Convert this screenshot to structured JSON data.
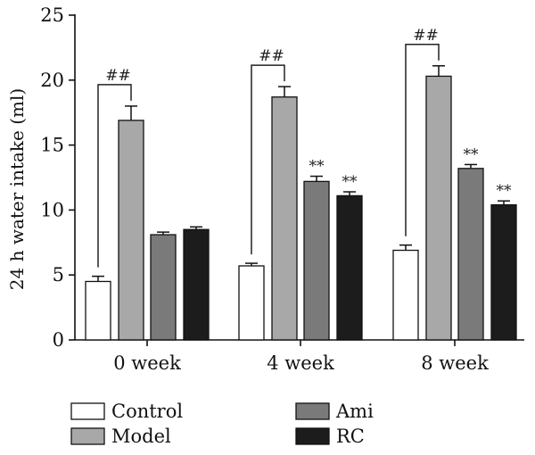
{
  "chart_data": {
    "type": "bar",
    "ylabel": "24 h water intake (ml)",
    "ylim": [
      0,
      25
    ],
    "yticks": [
      0,
      5,
      10,
      15,
      20,
      25
    ],
    "categories": [
      "0 week",
      "4 week",
      "8 week"
    ],
    "legend_position": "bottom",
    "series": [
      {
        "name": "Control",
        "color": "#ffffff",
        "values": [
          4.5,
          5.7,
          6.9
        ],
        "errors": [
          0.4,
          0.2,
          0.4
        ]
      },
      {
        "name": "Model",
        "color": "#a8a8a8",
        "values": [
          16.9,
          18.7,
          20.3
        ],
        "errors": [
          1.1,
          0.8,
          0.8
        ]
      },
      {
        "name": "Ami",
        "color": "#7a7a7a",
        "values": [
          8.1,
          12.2,
          13.2
        ],
        "errors": [
          0.2,
          0.4,
          0.3
        ]
      },
      {
        "name": "RC",
        "color": "#1c1c1c",
        "values": [
          8.5,
          11.1,
          10.4
        ],
        "errors": [
          0.2,
          0.3,
          0.3
        ]
      }
    ],
    "significance_brackets": [
      {
        "category": 0,
        "from_series": 0,
        "to_series": 1,
        "label": "##"
      },
      {
        "category": 1,
        "from_series": 0,
        "to_series": 1,
        "label": "##"
      },
      {
        "category": 2,
        "from_series": 0,
        "to_series": 1,
        "label": "##"
      }
    ],
    "star_marks": [
      {
        "category": 1,
        "series": 2,
        "label": "**"
      },
      {
        "category": 1,
        "series": 3,
        "label": "**"
      },
      {
        "category": 2,
        "series": 2,
        "label": "**"
      },
      {
        "category": 2,
        "series": 3,
        "label": "**"
      }
    ]
  }
}
